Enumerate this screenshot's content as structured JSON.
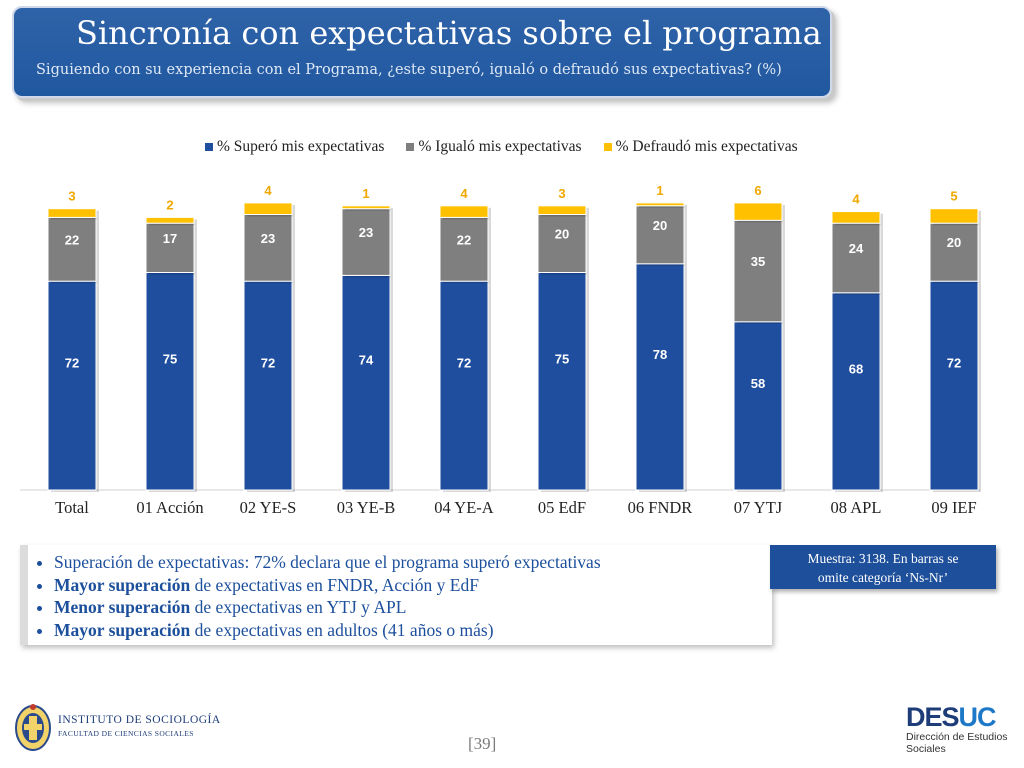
{
  "header": {
    "title": "Sincronía con expectativas sobre el programa",
    "subtitle": "Siguiendo con su experiencia con el Programa, ¿este superó, igualó o defraudó sus expectativas? (%)"
  },
  "chart_data": {
    "type": "bar",
    "stacked": true,
    "categories": [
      "Total",
      "01 Acción",
      "02 YE-S",
      "03 YE-B",
      "04 YE-A",
      "05 EdF",
      "06 FNDR",
      "07 YTJ",
      "08 APL",
      "09 IEF"
    ],
    "series": [
      {
        "name": "% Superó mis expectativas",
        "color": "#1f4e9e",
        "values": [
          72,
          75,
          72,
          74,
          72,
          75,
          78,
          58,
          68,
          72
        ]
      },
      {
        "name": "% Igualó mis expectativas",
        "color": "#7f7f7f",
        "values": [
          22,
          17,
          23,
          23,
          22,
          20,
          20,
          35,
          24,
          20
        ]
      },
      {
        "name": "% Defraudó mis expectativas",
        "color": "#ffc000",
        "values": [
          3,
          2,
          4,
          1,
          4,
          3,
          1,
          6,
          4,
          5
        ]
      }
    ],
    "legend_position": "top",
    "grid": false,
    "ylim": [
      0,
      100
    ]
  },
  "bullets": {
    "items": [
      {
        "bold": "",
        "text": "Superación de expectativas: 72% declara que el programa superó expectativas"
      },
      {
        "bold": "Mayor superación",
        "text": " de expectativas en FNDR, Acción y EdF"
      },
      {
        "bold": "Menor superación",
        "text": " de expectativas en YTJ y APL"
      },
      {
        "bold": "Mayor superación",
        "text": " de expectativas en adultos (41 años o más)"
      }
    ]
  },
  "sample_note": {
    "line1": "Muestra: 3138. En barras se",
    "line2": "omite categoría ‘Ns-Nr’"
  },
  "footer": {
    "page": "[39]",
    "institute_name": "INSTITUTO DE SOCIOLOGÍA",
    "institute_sub": "FACULTAD DE CIENCIAS SOCIALES",
    "desuc_a": "DES",
    "desuc_b": "UC",
    "desuc_sub1": "Dirección de Estudios",
    "desuc_sub2": "Sociales"
  }
}
